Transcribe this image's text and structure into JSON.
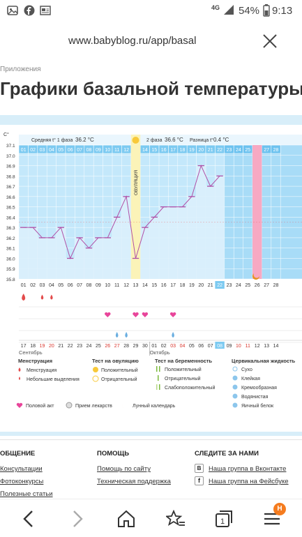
{
  "status": {
    "network": "4G",
    "battery": "54%",
    "time": "9:13"
  },
  "browser": {
    "url": "www.babyblog.ru/app/basal"
  },
  "breadcrumb": "Приложения",
  "page_title": "Графики базальной температуры",
  "chart": {
    "ylabel": "С°",
    "y_ticks": [
      "37.1",
      "37.0",
      "36.9",
      "36.8",
      "36.7",
      "36.6",
      "36.5",
      "36.4",
      "36.3",
      "36.2",
      "36.1",
      "36.0",
      "35.9",
      "35.8"
    ],
    "phase1": {
      "label": "Средняя t° 1 фаза",
      "value": "36.2 °С"
    },
    "phase2": {
      "label": "2 фаза",
      "value": "36.6 °С",
      "diff_label": "Разница t°",
      "diff_value": "0.4 °С"
    },
    "ovulation_label": "ОВУЛЯЦИЯ",
    "day_numbers": [
      "01",
      "02",
      "03",
      "04",
      "05",
      "06",
      "07",
      "08",
      "09",
      "10",
      "11",
      "12",
      "13",
      "14",
      "15",
      "16",
      "17",
      "18",
      "19",
      "20",
      "21",
      "22",
      "23",
      "24",
      "25",
      "26",
      "27",
      "28"
    ],
    "dates_top": [
      "17",
      "18",
      "19",
      "20",
      "21",
      "22",
      "23",
      "24",
      "25",
      "26",
      "27",
      "28",
      "29",
      "30",
      "01",
      "02",
      "03",
      "04",
      "05",
      "06",
      "07",
      "08",
      "09",
      "10",
      "11",
      "12",
      "13",
      "14"
    ],
    "dates_top_red": [
      2,
      3,
      9,
      10,
      16,
      17,
      23,
      24
    ],
    "dates_top_blue": [
      21
    ],
    "month_sep": "Сентябрь",
    "month_oct": "Октябрь",
    "today_index": 21
  },
  "chart_data": {
    "type": "line",
    "ylabel": "С°",
    "ylim": [
      35.8,
      37.1
    ],
    "x": [
      1,
      2,
      3,
      4,
      5,
      6,
      7,
      8,
      9,
      10,
      11,
      12,
      13,
      14,
      15,
      16,
      17,
      18,
      19,
      20,
      21,
      22
    ],
    "values": [
      36.3,
      36.3,
      36.2,
      36.2,
      36.3,
      36.0,
      36.2,
      36.1,
      36.2,
      36.2,
      36.4,
      36.6,
      36.0,
      36.3,
      36.4,
      36.5,
      36.5,
      36.5,
      36.6,
      36.9,
      36.7,
      36.8
    ],
    "ovulation_day": 13,
    "marked_day": 26
  },
  "legend": {
    "menstruation_h": "Менструация",
    "menstruation_a": "Менструация",
    "menstruation_b": "Небольшие выделения",
    "ovulation_h": "Тест на овуляцию",
    "ovulation_a": "Положительный",
    "ovulation_b": "Отрицательный",
    "pregnancy_h": "Тест на беременность",
    "pregnancy_a": "Положительный",
    "pregnancy_b": "Отрицательный",
    "pregnancy_c": "Слабоположительный",
    "mucus_h": "Цервикальная жидкость",
    "mucus_a": "Сухо",
    "mucus_b": "Клейкая",
    "mucus_c": "Кремообразная",
    "mucus_d": "Водянистая",
    "mucus_e": "Яичный белок",
    "sex": "Половой акт",
    "meds": "Прием лекарств",
    "moon": "Лунный календарь"
  },
  "footer": {
    "col1_h": "ОБЩЕНИЕ",
    "col1_a": "Консультации",
    "col1_b": "Фотоконкурсы",
    "col1_c": "Полезные статьи",
    "col2_h": "ПОМОЩЬ",
    "col2_a": "Помощь по сайту",
    "col2_b": "Техническая поддержка",
    "col3_h": "СЛЕДИТЕ ЗА НАМИ",
    "col3_a": "Наша группа в Вконтакте",
    "col3_b": "Наша группа на Фейсбуке"
  },
  "nav": {
    "badge": "Н"
  }
}
